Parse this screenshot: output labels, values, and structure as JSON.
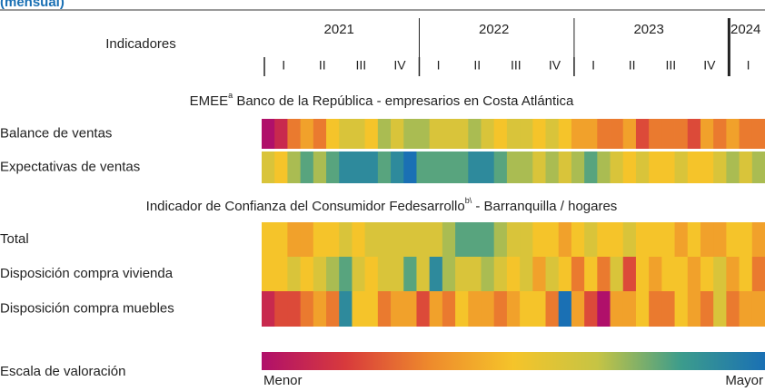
{
  "chart_data": {
    "type": "heatmap",
    "subtitle": "(mensual)",
    "row_header": "Indicadores",
    "years": [
      "2021",
      "2022",
      "2023",
      "2024"
    ],
    "quarters": [
      [
        "I",
        "II",
        "III",
        "IV"
      ],
      [
        "I",
        "II",
        "III",
        "IV"
      ],
      [
        "I",
        "II",
        "III",
        "IV"
      ],
      [
        "I"
      ]
    ],
    "vlim": [
      0,
      10
    ],
    "colorscale": [
      "#b0106a",
      "#d83a3c",
      "#ee8a2c",
      "#f5c42a",
      "#c6c444",
      "#3c9c8c",
      "#1a70b4"
    ],
    "sections": [
      {
        "title": [
          "EMEE",
          "a",
          " Banco de la República - empresarios en Costa Atlántica"
        ],
        "rows": [
          {
            "name": "Balance de ventas",
            "values": [
              0,
              1,
              3,
              4,
              3,
              5,
              6,
              6,
              5,
              7,
              6,
              7,
              7,
              6,
              6,
              6,
              7,
              6,
              5,
              6,
              6,
              5,
              6,
              5,
              4,
              4,
              3,
              3,
              4,
              2,
              3,
              3,
              3,
              2,
              4,
              3,
              4,
              3,
              3
            ]
          },
          {
            "name": "Expectativas de ventas",
            "values": [
              6,
              5,
              7,
              8,
              7,
              8,
              9,
              9,
              9,
              8,
              9,
              10,
              8,
              8,
              8,
              8,
              9,
              9,
              8,
              7,
              7,
              6,
              7,
              6,
              7,
              8,
              7,
              6,
              5,
              6,
              5,
              5,
              6,
              5,
              5,
              6,
              7,
              6,
              7
            ]
          }
        ]
      },
      {
        "title": [
          "Indicador de Confianza del Consumidor Fedesarrollo",
          "b\\",
          " - Barranquilla / hogares"
        ],
        "rows": [
          {
            "name": "Total",
            "values": [
              5,
              5,
              4,
              4,
              5,
              5,
              6,
              5,
              6,
              6,
              6,
              6,
              6,
              6,
              7,
              8,
              8,
              8,
              7,
              6,
              6,
              5,
              5,
              4,
              5,
              6,
              5,
              5,
              6,
              5,
              5,
              5,
              4,
              5,
              4,
              4,
              5,
              5,
              4
            ]
          },
          {
            "name": "Disposición compra vivienda",
            "values": [
              5,
              5,
              6,
              5,
              6,
              7,
              8,
              6,
              5,
              6,
              6,
              8,
              6,
              9,
              7,
              6,
              6,
              7,
              6,
              5,
              6,
              4,
              6,
              5,
              3,
              5,
              3,
              6,
              2,
              5,
              4,
              5,
              5,
              4,
              5,
              6,
              4,
              5,
              3
            ]
          },
          {
            "name": "Disposición compra muebles",
            "values": [
              1,
              2,
              2,
              3,
              4,
              3,
              9,
              5,
              5,
              3,
              4,
              4,
              2,
              4,
              3,
              5,
              4,
              4,
              3,
              4,
              5,
              5,
              3,
              10,
              4,
              2,
              0,
              4,
              4,
              5,
              3,
              3,
              5,
              4,
              3,
              6,
              3,
              4,
              4
            ]
          }
        ]
      }
    ],
    "scale_title": "Escala de valoración",
    "scale_labels": [
      "Menor",
      "Mayor"
    ]
  }
}
